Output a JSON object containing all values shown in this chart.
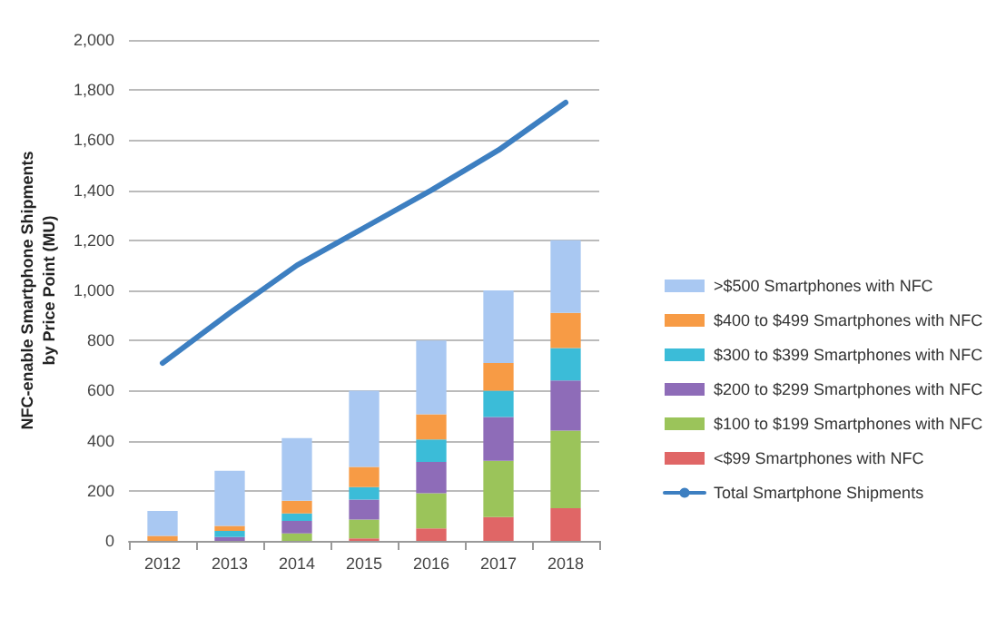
{
  "chart_data": {
    "type": "bar",
    "stacked": true,
    "ylabel": "NFC-enable Smartphone Shipments\nby Price Point (MU)",
    "categories": [
      "2012",
      "2013",
      "2014",
      "2015",
      "2016",
      "2017",
      "2018"
    ],
    "series": [
      {
        "name": "<$99 Smartphones with NFC",
        "color": "#e06666",
        "values": [
          0,
          0,
          0,
          10,
          50,
          95,
          130
        ]
      },
      {
        "name": "$100 to $199 Smartphones with NFC",
        "color": "#9bc45a",
        "values": [
          0,
          0,
          30,
          75,
          140,
          225,
          310
        ]
      },
      {
        "name": "$200 to $299 Smartphones with NFC",
        "color": "#8e6cb8",
        "values": [
          0,
          15,
          50,
          80,
          125,
          175,
          200
        ]
      },
      {
        "name": "$300 to $399 Smartphones with NFC",
        "color": "#3bbcd8",
        "values": [
          0,
          25,
          30,
          50,
          90,
          105,
          130
        ]
      },
      {
        "name": "$400 to $499 Smartphones with NFC",
        "color": "#f79b45",
        "values": [
          20,
          20,
          50,
          80,
          100,
          110,
          140
        ]
      },
      {
        "name": ">$500 Smartphones with NFC",
        "color": "#a9c8f2",
        "values": [
          100,
          220,
          250,
          305,
          295,
          290,
          290
        ]
      },
      {
        "name": "Total Smartphone Shipments",
        "type": "line",
        "color": "#3d7fc1",
        "marker": "none",
        "values": [
          710,
          910,
          1100,
          1250,
          1400,
          1560,
          1750
        ]
      }
    ],
    "ylim": [
      0,
      2000
    ],
    "yticks": [
      0,
      200,
      400,
      600,
      800,
      {
        "value": 1000,
        "label": "1,000"
      },
      {
        "value": 1200,
        "label": "1,200"
      },
      {
        "value": 1400,
        "label": "1,400"
      },
      {
        "value": 1600,
        "label": "1,600"
      },
      {
        "value": 1800,
        "label": "1,800"
      },
      {
        "value": 2000,
        "label": "2,000"
      }
    ],
    "grid": "y",
    "legend": "right"
  }
}
